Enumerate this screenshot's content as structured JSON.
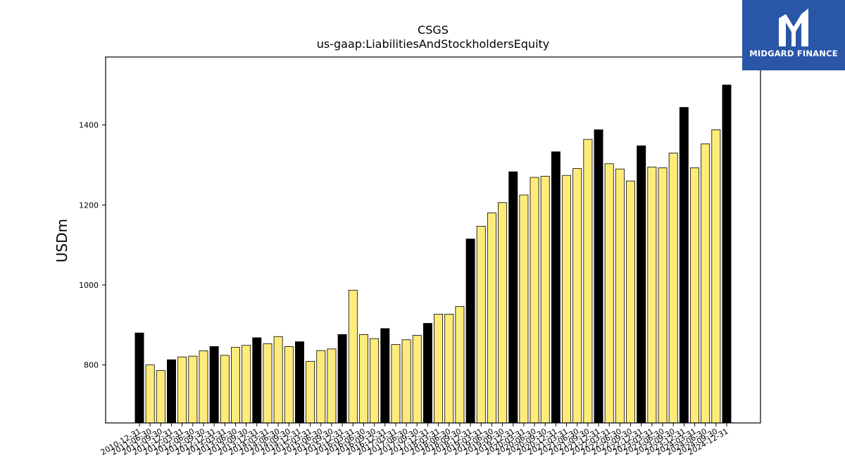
{
  "chart_data": {
    "type": "bar",
    "title": "CSGS",
    "subtitle": "us-gaap:LiabilitiesAndStockholdersEquity",
    "xlabel": "",
    "ylabel": "USDm",
    "ylim": [
      655,
      1570
    ],
    "yticks": [
      800,
      1000,
      1200,
      1400
    ],
    "grid": false,
    "colors": {
      "annual": "#000000",
      "quarterly": "#ffeb7a",
      "edge": "#000000"
    },
    "categories": [
      "2010-12-31",
      "2011-06-30",
      "2011-09-30",
      "2011-12-31",
      "2012-03-31",
      "2012-06-30",
      "2012-09-30",
      "2012-12-31",
      "2013-03-31",
      "2013-06-30",
      "2013-09-30",
      "2013-12-31",
      "2014-03-31",
      "2014-06-30",
      "2014-09-30",
      "2014-12-31",
      "2015-03-31",
      "2015-06-30",
      "2015-09-30",
      "2015-12-31",
      "2016-03-31",
      "2016-06-30",
      "2016-09-30",
      "2016-12-31",
      "2017-03-31",
      "2017-06-30",
      "2017-09-30",
      "2017-12-31",
      "2018-03-31",
      "2018-06-30",
      "2018-09-30",
      "2018-12-31",
      "2019-03-31",
      "2019-06-30",
      "2019-09-30",
      "2019-12-31",
      "2020-03-31",
      "2020-06-30",
      "2020-09-30",
      "2020-12-31",
      "2021-03-31",
      "2021-06-30",
      "2021-09-30",
      "2021-12-31",
      "2022-03-31",
      "2022-06-30",
      "2022-09-30",
      "2022-12-31",
      "2023-03-31",
      "2023-06-30",
      "2023-09-30",
      "2023-12-31",
      "2024-03-31",
      "2024-06-30",
      "2024-09-30",
      "2024-12-31"
    ],
    "values": [
      880,
      800,
      786,
      813,
      820,
      822,
      835,
      846,
      824,
      844,
      849,
      868,
      853,
      871,
      846,
      858,
      809,
      836,
      840,
      876,
      987,
      876,
      866,
      891,
      851,
      863,
      874,
      904,
      927,
      927,
      946,
      1115,
      1147,
      1180,
      1206,
      1283,
      1225,
      1269,
      1272,
      1333,
      1274,
      1291,
      1364,
      1388,
      1303,
      1290,
      1260,
      1348,
      1295,
      1293,
      1330,
      1444,
      1293,
      1353,
      1388,
      1500
    ],
    "annual": [
      true,
      false,
      false,
      true,
      false,
      false,
      false,
      true,
      false,
      false,
      false,
      true,
      false,
      false,
      false,
      true,
      false,
      false,
      false,
      true,
      false,
      false,
      false,
      true,
      false,
      false,
      false,
      true,
      false,
      false,
      false,
      true,
      false,
      false,
      false,
      true,
      false,
      false,
      false,
      true,
      false,
      false,
      false,
      true,
      false,
      false,
      false,
      true,
      false,
      false,
      false,
      true,
      false,
      false,
      false,
      true
    ]
  },
  "logo": {
    "text": "MIDGARD FINANCE",
    "icon": "midgard-m-logo-icon"
  }
}
